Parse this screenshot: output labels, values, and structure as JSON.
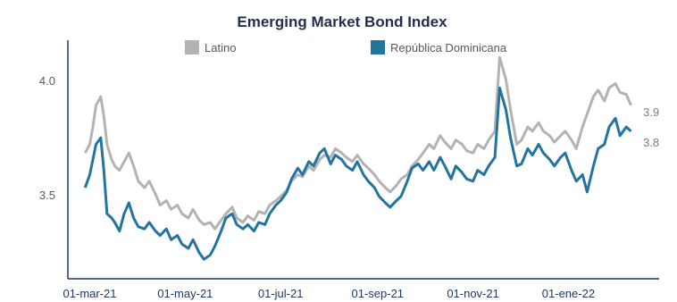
{
  "chart_data": {
    "type": "line",
    "title": "Emerging Market Bond Index",
    "xlabel": "",
    "ylabel": "",
    "ylim": [
      3.1,
      4.2
    ],
    "y_ticks": [
      "3.5",
      "4.0"
    ],
    "x_tick_labels": [
      "01-mar-21",
      "01-may-21",
      "01-jul-21",
      "01-sep-21",
      "01-nov-21",
      "01-ene-22"
    ],
    "x_tick_dates": [
      "2021-03-01",
      "2021-05-01",
      "2021-07-01",
      "2021-09-01",
      "2021-11-01",
      "2022-01-01"
    ],
    "x_range": [
      "2021-02-15",
      "2022-02-28"
    ],
    "legend_position": "top",
    "grid": false,
    "end_labels": [
      "3.9",
      "3.8"
    ],
    "colors": {
      "Latino": "#b3b3b3",
      "República Dominicana": "#2474a0",
      "axis": "#1f3864"
    },
    "series": [
      {
        "name": "Latino",
        "x": [
          "2021-02-26",
          "2021-03-01",
          "2021-03-03",
          "2021-03-05",
          "2021-03-08",
          "2021-03-10",
          "2021-03-12",
          "2021-03-15",
          "2021-03-17",
          "2021-03-20",
          "2021-03-23",
          "2021-03-26",
          "2021-03-29",
          "2021-04-01",
          "2021-04-05",
          "2021-04-08",
          "2021-04-12",
          "2021-04-15",
          "2021-04-19",
          "2021-04-22",
          "2021-04-26",
          "2021-04-29",
          "2021-05-03",
          "2021-05-06",
          "2021-05-10",
          "2021-05-13",
          "2021-05-17",
          "2021-05-20",
          "2021-05-24",
          "2021-05-27",
          "2021-05-31",
          "2021-06-03",
          "2021-06-07",
          "2021-06-10",
          "2021-06-14",
          "2021-06-17",
          "2021-06-21",
          "2021-06-24",
          "2021-06-28",
          "2021-07-01",
          "2021-07-05",
          "2021-07-08",
          "2021-07-12",
          "2021-07-15",
          "2021-07-19",
          "2021-07-22",
          "2021-07-26",
          "2021-07-29",
          "2021-08-02",
          "2021-08-05",
          "2021-08-09",
          "2021-08-12",
          "2021-08-16",
          "2021-08-19",
          "2021-08-23",
          "2021-08-26",
          "2021-08-30",
          "2021-09-02",
          "2021-09-06",
          "2021-09-09",
          "2021-09-13",
          "2021-09-16",
          "2021-09-20",
          "2021-09-23",
          "2021-09-27",
          "2021-09-30",
          "2021-10-04",
          "2021-10-07",
          "2021-10-11",
          "2021-10-14",
          "2021-10-18",
          "2021-10-21",
          "2021-10-25",
          "2021-10-28",
          "2021-11-01",
          "2021-11-04",
          "2021-11-08",
          "2021-11-11",
          "2021-11-15",
          "2021-11-18",
          "2021-11-22",
          "2021-11-25",
          "2021-11-29",
          "2021-12-02",
          "2021-12-06",
          "2021-12-09",
          "2021-12-13",
          "2021-12-16",
          "2021-12-20",
          "2021-12-23",
          "2021-12-27",
          "2021-12-30",
          "2022-01-03",
          "2022-01-06",
          "2022-01-10",
          "2022-01-13",
          "2022-01-17",
          "2022-01-20",
          "2022-01-24",
          "2022-01-27",
          "2022-01-31",
          "2022-02-03",
          "2022-02-07",
          "2022-02-10"
        ],
        "values": [
          3.68,
          3.72,
          3.8,
          3.9,
          3.94,
          3.85,
          3.72,
          3.65,
          3.62,
          3.6,
          3.64,
          3.68,
          3.62,
          3.55,
          3.52,
          3.55,
          3.49,
          3.44,
          3.46,
          3.42,
          3.44,
          3.4,
          3.38,
          3.42,
          3.37,
          3.35,
          3.36,
          3.33,
          3.37,
          3.4,
          3.43,
          3.38,
          3.36,
          3.39,
          3.37,
          3.41,
          3.4,
          3.44,
          3.46,
          3.48,
          3.51,
          3.55,
          3.58,
          3.57,
          3.62,
          3.6,
          3.65,
          3.67,
          3.66,
          3.7,
          3.68,
          3.66,
          3.64,
          3.67,
          3.63,
          3.61,
          3.58,
          3.55,
          3.52,
          3.5,
          3.53,
          3.56,
          3.58,
          3.62,
          3.65,
          3.68,
          3.72,
          3.7,
          3.76,
          3.73,
          3.7,
          3.74,
          3.72,
          3.69,
          3.68,
          3.72,
          3.7,
          3.74,
          3.78,
          4.12,
          4.02,
          3.88,
          3.72,
          3.74,
          3.8,
          3.78,
          3.82,
          3.78,
          3.76,
          3.73,
          3.76,
          3.78,
          3.74,
          3.7,
          3.8,
          3.86,
          3.94,
          3.97,
          3.92,
          3.98,
          4.0,
          3.96,
          3.95,
          3.9
        ],
        "end_label": "3.9"
      },
      {
        "name": "República Dominicana",
        "x": [
          "2021-02-26",
          "2021-03-01",
          "2021-03-03",
          "2021-03-05",
          "2021-03-08",
          "2021-03-10",
          "2021-03-12",
          "2021-03-15",
          "2021-03-17",
          "2021-03-20",
          "2021-03-23",
          "2021-03-26",
          "2021-03-29",
          "2021-04-01",
          "2021-04-05",
          "2021-04-08",
          "2021-04-12",
          "2021-04-15",
          "2021-04-19",
          "2021-04-22",
          "2021-04-26",
          "2021-04-29",
          "2021-05-03",
          "2021-05-06",
          "2021-05-10",
          "2021-05-13",
          "2021-05-17",
          "2021-05-20",
          "2021-05-24",
          "2021-05-27",
          "2021-05-31",
          "2021-06-03",
          "2021-06-07",
          "2021-06-10",
          "2021-06-14",
          "2021-06-17",
          "2021-06-21",
          "2021-06-24",
          "2021-06-28",
          "2021-07-01",
          "2021-07-05",
          "2021-07-08",
          "2021-07-12",
          "2021-07-15",
          "2021-07-19",
          "2021-07-22",
          "2021-07-26",
          "2021-07-29",
          "2021-08-02",
          "2021-08-05",
          "2021-08-09",
          "2021-08-12",
          "2021-08-16",
          "2021-08-19",
          "2021-08-23",
          "2021-08-26",
          "2021-08-30",
          "2021-09-02",
          "2021-09-06",
          "2021-09-09",
          "2021-09-13",
          "2021-09-16",
          "2021-09-20",
          "2021-09-23",
          "2021-09-27",
          "2021-09-30",
          "2021-10-04",
          "2021-10-07",
          "2021-10-11",
          "2021-10-14",
          "2021-10-18",
          "2021-10-21",
          "2021-10-25",
          "2021-10-28",
          "2021-11-01",
          "2021-11-04",
          "2021-11-08",
          "2021-11-11",
          "2021-11-15",
          "2021-11-18",
          "2021-11-22",
          "2021-11-25",
          "2021-11-29",
          "2021-12-02",
          "2021-12-06",
          "2021-12-09",
          "2021-12-13",
          "2021-12-16",
          "2021-12-20",
          "2021-12-23",
          "2021-12-27",
          "2021-12-30",
          "2022-01-03",
          "2022-01-06",
          "2022-01-10",
          "2022-01-13",
          "2022-01-17",
          "2022-01-20",
          "2022-01-24",
          "2022-01-27",
          "2022-01-31",
          "2022-02-03",
          "2022-02-07",
          "2022-02-10"
        ],
        "values": [
          3.52,
          3.58,
          3.65,
          3.72,
          3.75,
          3.6,
          3.4,
          3.38,
          3.36,
          3.32,
          3.4,
          3.45,
          3.38,
          3.34,
          3.33,
          3.36,
          3.32,
          3.3,
          3.33,
          3.28,
          3.3,
          3.26,
          3.24,
          3.28,
          3.22,
          3.19,
          3.21,
          3.25,
          3.32,
          3.38,
          3.4,
          3.35,
          3.33,
          3.35,
          3.32,
          3.36,
          3.35,
          3.4,
          3.44,
          3.46,
          3.5,
          3.56,
          3.61,
          3.58,
          3.64,
          3.62,
          3.68,
          3.7,
          3.63,
          3.67,
          3.65,
          3.62,
          3.6,
          3.64,
          3.58,
          3.55,
          3.52,
          3.48,
          3.45,
          3.43,
          3.46,
          3.48,
          3.55,
          3.61,
          3.63,
          3.6,
          3.64,
          3.6,
          3.66,
          3.62,
          3.56,
          3.62,
          3.59,
          3.56,
          3.55,
          3.6,
          3.58,
          3.62,
          3.66,
          3.98,
          3.88,
          3.75,
          3.62,
          3.63,
          3.7,
          3.67,
          3.72,
          3.68,
          3.65,
          3.62,
          3.66,
          3.68,
          3.6,
          3.55,
          3.58,
          3.5,
          3.62,
          3.7,
          3.72,
          3.8,
          3.84,
          3.76,
          3.8,
          3.78
        ],
        "end_label": "3.8"
      }
    ]
  }
}
